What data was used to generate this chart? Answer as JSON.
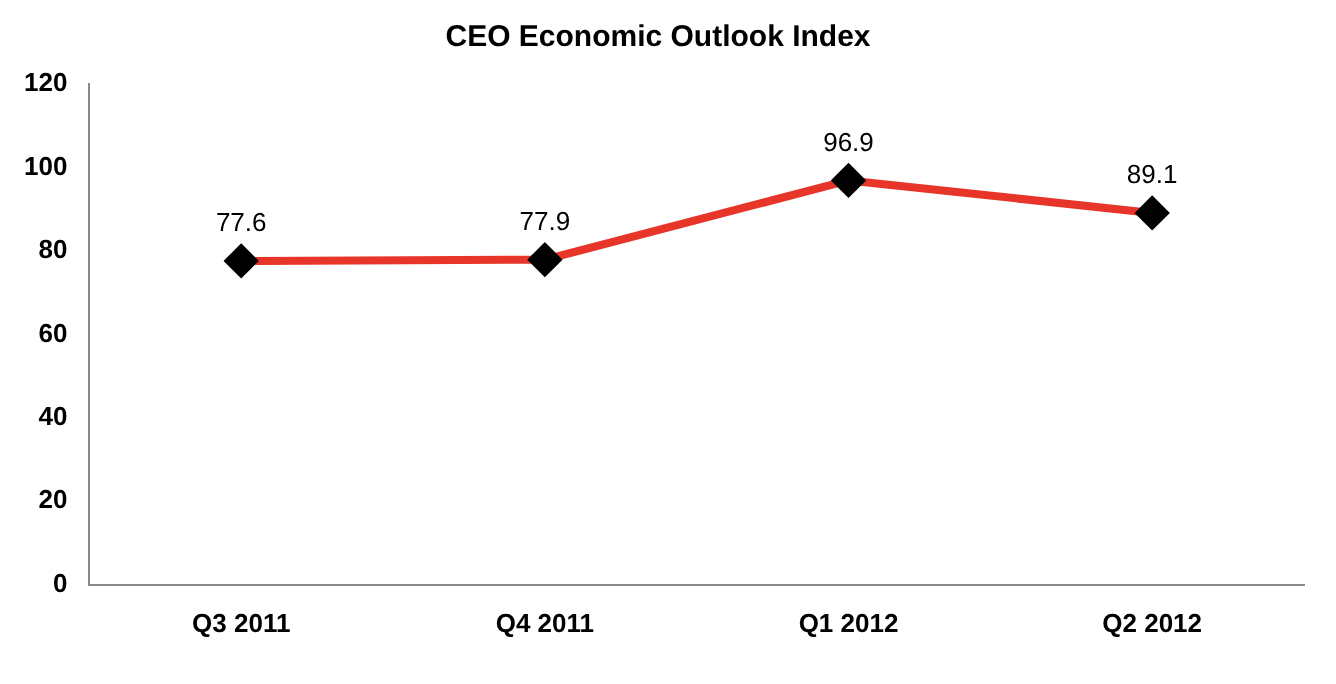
{
  "chart_data": {
    "type": "line",
    "title": "CEO Economic Outlook Index",
    "categories": [
      "Q3 2011",
      "Q4 2011",
      "Q1 2012",
      "Q2 2012"
    ],
    "series": [
      {
        "color": "#e8352a",
        "values": [
          77.6,
          77.9,
          96.9,
          89.1
        ]
      }
    ],
    "ylim": [
      0,
      120
    ],
    "yticks": [
      0,
      20,
      40,
      60,
      80,
      100,
      120
    ],
    "grid": false,
    "legend": false,
    "marker": "diamond",
    "line_style": "solid",
    "data_labels": true
  }
}
